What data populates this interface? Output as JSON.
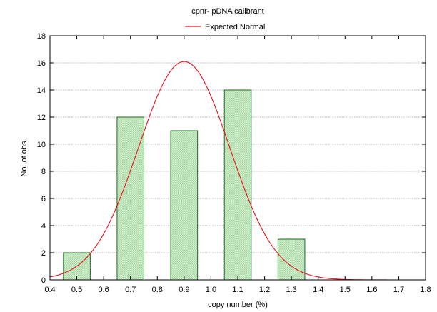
{
  "chart_data": {
    "type": "bar",
    "title": "cpnr- pDNA calibrant",
    "xlabel": "copy number (%)",
    "ylabel": "No. of obs.",
    "xlim": [
      0.4,
      1.8
    ],
    "ylim": [
      0,
      18
    ],
    "x_ticks": [
      "0.4",
      "0.5",
      "0.6",
      "0.7",
      "0.8",
      "0.9",
      "1.0",
      "1.1",
      "1.2",
      "1.3",
      "1.4",
      "1.5",
      "1.6",
      "1.7",
      "1.8"
    ],
    "y_ticks": [
      "0",
      "2",
      "4",
      "6",
      "8",
      "10",
      "12",
      "14",
      "16",
      "18"
    ],
    "grid": "horizontal dotted",
    "legend": {
      "position": "top",
      "entries": [
        "Expected Normal"
      ]
    },
    "bars": [
      {
        "x": 0.5,
        "value": 2
      },
      {
        "x": 0.7,
        "value": 12
      },
      {
        "x": 0.9,
        "value": 11
      },
      {
        "x": 1.1,
        "value": 14
      },
      {
        "x": 1.3,
        "value": 3
      }
    ],
    "bin_width": 0.1,
    "curve": {
      "name": "Expected Normal",
      "peak_x": 0.9,
      "peak_y": 16.1,
      "sigma": 0.17
    },
    "colors": {
      "bar_fill": "#c7e8c4",
      "bar_stroke": "#1a6b1a",
      "curve": "#e8121a",
      "grid": "#9a9a9a"
    }
  }
}
